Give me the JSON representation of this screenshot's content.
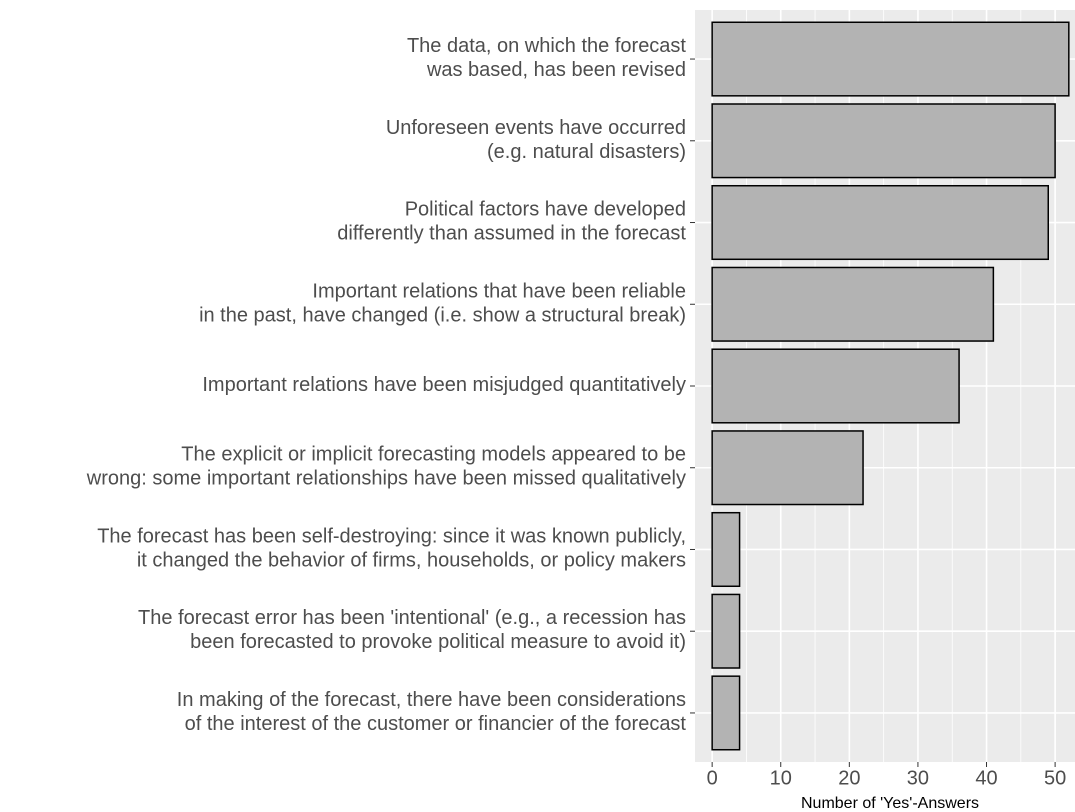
{
  "chart_data": {
    "type": "barh",
    "categories": [
      "The data, on which the forecast\nwas based, has been revised",
      "Unforeseen events have occurred\n(e.g. natural disasters)",
      "Political factors have developed\ndifferently than assumed in the forecast",
      "Important relations that have been reliable\nin the past, have changed (i.e. show a structural break)",
      "Important relations have been misjudged quantitatively",
      "The explicit or implicit forecasting models appeared to be\nwrong: some important relationships have been missed qualitatively",
      "The forecast has been self-destroying:  since it was known publicly,\nit changed the behavior of firms, households, or policy makers",
      "The forecast error has been 'intentional' (e.g., a recession has\nbeen forecasted to provoke political measure to avoid it)",
      "In making of the forecast, there have been considerations\nof the interest of the customer or financier of the forecast"
    ],
    "values": [
      52,
      50,
      49,
      41,
      36,
      22,
      4,
      4,
      4
    ],
    "color": "#b3b3b3",
    "xlabel": "Number of 'Yes'-Answers",
    "xlim": [
      -2.5,
      52.9
    ],
    "xticks": [
      0,
      10,
      20,
      30,
      40,
      50
    ],
    "xticks_minor": [
      5,
      15,
      25,
      35,
      45
    ],
    "grid": true
  }
}
